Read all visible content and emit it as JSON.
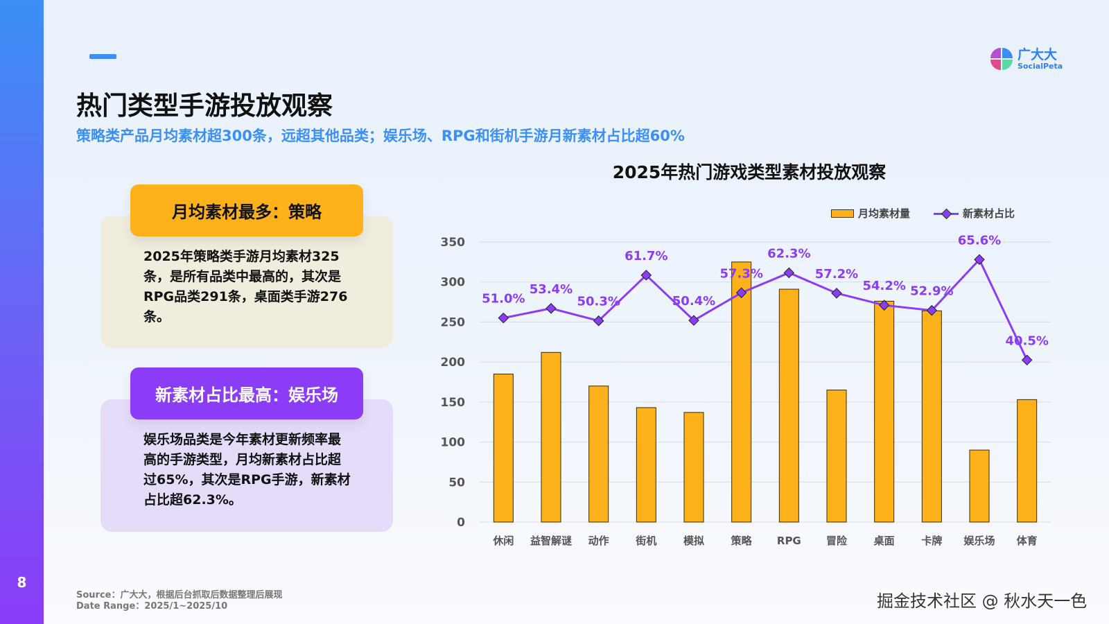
{
  "page_number": "8",
  "title": "热门类型手游投放观察",
  "subtitle": "策略类产品月均素材超300条，远超其他品类；娱乐场、RPG和街机手游月新素材占比超60%",
  "logo": {
    "cn": "广大大",
    "en": "SocialPeta"
  },
  "cards": [
    {
      "heading": "月均素材最多：策略",
      "body": "2025年策略类手游月均素材325条，是所有品类中最高的，其次是RPG品类291条，桌面类手游276条。",
      "color": "#fdb21b"
    },
    {
      "heading": "新素材占比最高：娱乐场",
      "body": "娱乐场品类是今年素材更新频率最高的手游类型，月均新素材占比超过65%，其次是RPG手游，新素材占比超62.3%。",
      "color": "#8a3cf6"
    }
  ],
  "source": "Source：广大大，根据后台抓取后数据整理后展现",
  "date_range": "Date Range：2025/1~2025/10",
  "watermark": "掘金技术社区 @ 秋水天一色",
  "chart_data": {
    "type": "bar+line",
    "title": "2025年热门游戏类型素材投放观察",
    "categories": [
      "休闲",
      "益智解谜",
      "动作",
      "街机",
      "模拟",
      "策略",
      "RPG",
      "冒险",
      "桌面",
      "卡牌",
      "娱乐场",
      "体育"
    ],
    "series": [
      {
        "name": "月均素材量",
        "type": "bar",
        "axis": "left",
        "color": "#fdb21b",
        "values": [
          185,
          212,
          170,
          143,
          137,
          325,
          291,
          165,
          276,
          264,
          90,
          153
        ]
      },
      {
        "name": "新素材占比",
        "type": "line",
        "axis": "right",
        "color": "#8a3cf6",
        "values": [
          51.0,
          53.4,
          50.3,
          61.7,
          50.4,
          57.3,
          62.3,
          57.2,
          54.2,
          52.9,
          65.6,
          40.5
        ],
        "labels": [
          "51.0%",
          "53.4%",
          "50.3%",
          "61.7%",
          "50.4%",
          "57.3%",
          "62.3%",
          "57.2%",
          "54.2%",
          "52.9%",
          "65.6%",
          "40.5%"
        ]
      }
    ],
    "ylim": [
      0,
      350
    ],
    "y2lim": [
      0,
      70
    ],
    "yticks": [
      "0",
      "50",
      "100",
      "150",
      "200",
      "250",
      "300",
      "350"
    ],
    "grid": true,
    "legend": "top-right"
  }
}
